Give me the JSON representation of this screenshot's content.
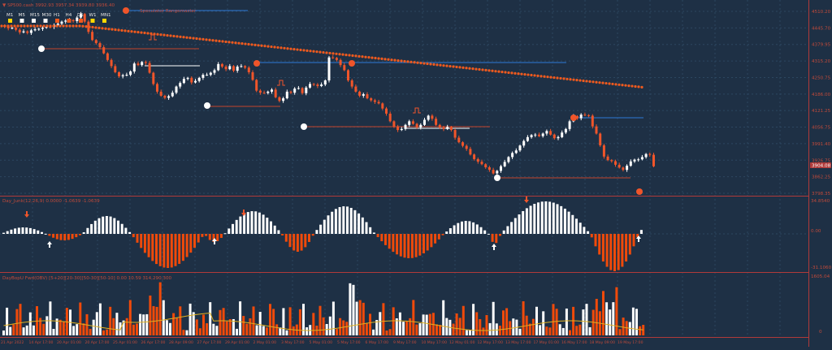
{
  "colors": {
    "background": "#1e3045",
    "grid": "#2c4660",
    "bull": "#ffffff",
    "bear": "#f0552a",
    "bear_hist": "#f04a0a",
    "ma": "#f05a1e",
    "resistance": "#2f7ad8",
    "support": "#c4432c",
    "volume_ma": "#e0b020",
    "axis_text": "#c04a3a",
    "label_text": "#c04a3a"
  },
  "header": {
    "title": "▼ SP500.cash  3992.93  3957.34  3939.80  3936.40",
    "indicator_tag": "Speculator  Rangemaster"
  },
  "timeframes": [
    "M1",
    "M5",
    "M15",
    "M30",
    "H1",
    "H4",
    "D1",
    "W1",
    "MN1"
  ],
  "price_axis": {
    "ticks": [
      "4510.20",
      "4445.70",
      "4379.95",
      "4315.20",
      "4250.75",
      "4186.00",
      "4121.25",
      "4056.75",
      "3991.40",
      "3926.75",
      "3862.25",
      "3798.35"
    ],
    "current_price": "3904.08"
  },
  "oscillator": {
    "label": "Day_Junk(12,26,9)  0.0000  -1.0639  -1.0639",
    "axis_top": "34.8540",
    "axis_mid": "0.00",
    "axis_bottom": "-31.1060"
  },
  "volume": {
    "label": "DayBopU Fwd(OBV) [5+20][20-30][50-30][50-10]  0.00  10.59  314,290,300",
    "axis_top": "1605.04",
    "axis_bottom": "0"
  },
  "time_axis": [
    "21 Apr 2022",
    "14 Apr 17:00",
    "20 Apr 01:00",
    "20 Apr 17:00",
    "25 Apr 01:00",
    "26 Apr 17:00",
    "28 Apr 09:00",
    "27 Apr 17:00",
    "29 Apr 01:00",
    "2 May 01:00",
    "3 May 17:00",
    "5 May 01:00",
    "5 May 17:00",
    "6 May 17:00",
    "9 May 17:00",
    "10 May 17:00",
    "12 May 01:00",
    "12 May 17:00",
    "13 May 17:00",
    "17 May 01:00",
    "16 May 17:00",
    "18 May 09:00",
    "19 May 17:00"
  ],
  "chart_data": {
    "type": "candlestick",
    "source": "visual estimate from screenshot",
    "symbol": "SP500.cash",
    "y_range": [
      3798.35,
      4510.2
    ],
    "close": [
      4451,
      4444,
      4446,
      4438,
      4428,
      4432,
      4426,
      4436,
      4440,
      4442,
      4446,
      4450,
      4449,
      4457,
      4462,
      4470,
      4474,
      4476,
      4472,
      4486,
      4500,
      4470,
      4430,
      4398,
      4386,
      4370,
      4346,
      4320,
      4296,
      4272,
      4256,
      4260,
      4262,
      4275,
      4306,
      4300,
      4312,
      4308,
      4270,
      4226,
      4196,
      4180,
      4172,
      4178,
      4192,
      4216,
      4230,
      4246,
      4250,
      4232,
      4238,
      4250,
      4262,
      4262,
      4270,
      4280,
      4304,
      4294,
      4284,
      4296,
      4278,
      4294,
      4296,
      4290,
      4272,
      4242,
      4200,
      4192,
      4191,
      4196,
      4204,
      4174,
      4160,
      4170,
      4196,
      4192,
      4208,
      4210,
      4190,
      4212,
      4226,
      4224,
      4218,
      4224,
      4240,
      4330,
      4328,
      4320,
      4300,
      4280,
      4240,
      4216,
      4196,
      4180,
      4186,
      4170,
      4162,
      4156,
      4150,
      4130,
      4110,
      4080,
      4060,
      4046,
      4050,
      4066,
      4080,
      4070,
      4056,
      4066,
      4086,
      4102,
      4090,
      4066,
      4056,
      4050,
      4058,
      4046,
      4016,
      3998,
      3984,
      3972,
      3950,
      3932,
      3922,
      3912,
      3900,
      3890,
      3876,
      3886,
      3904,
      3921,
      3940,
      3956,
      3966,
      3985,
      4003,
      4018,
      4026,
      4028,
      4022,
      4032,
      4042,
      4028,
      4014,
      4018,
      4036,
      4050,
      4080,
      4100,
      4092,
      4106,
      4104,
      4102,
      4060,
      4032,
      3986,
      3942,
      3928,
      3924,
      3910,
      3899,
      3890,
      3906,
      3923,
      3930,
      3931,
      3940,
      3952,
      3949,
      3904
    ]
  }
}
